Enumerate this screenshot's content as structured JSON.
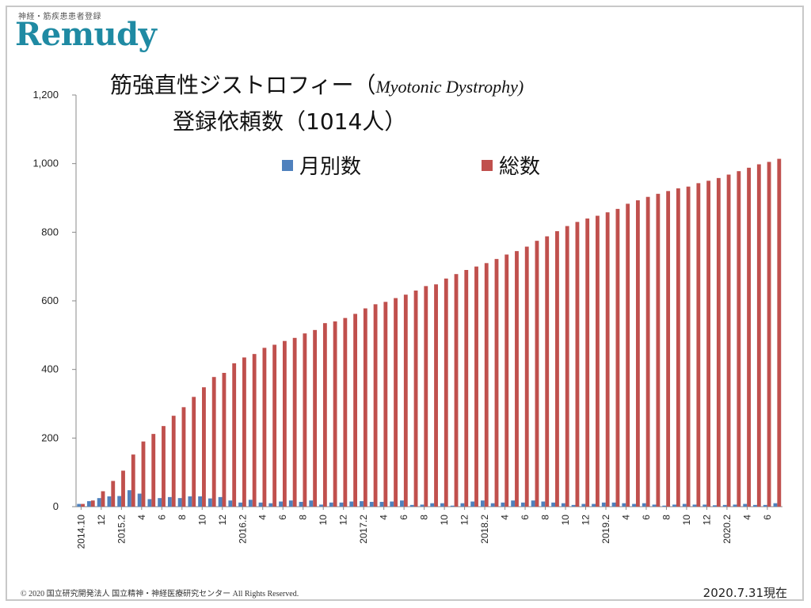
{
  "brand": {
    "sub": "神経・筋疾患患者登録",
    "logo": "Remudy"
  },
  "title": {
    "line1": "筋強直性ジストロフィー（",
    "line1_en": "Myotonic Dystrophy)",
    "line2": "登録依頼数（1014人）"
  },
  "legend": {
    "monthly": "月別数",
    "total": "総数"
  },
  "footer": {
    "copyright": "© 2020 国立研究開発法人 国立精神・神経医療研究センター All Rights Reserved.",
    "asof": "2020.7.31現在"
  },
  "colors": {
    "monthly": "#4f81bd",
    "total": "#c0504d",
    "brand": "#1f8aa3"
  },
  "chart_data": {
    "type": "bar",
    "ylim": [
      0,
      1200
    ],
    "yticks": [
      "0",
      "200",
      "400",
      "600",
      "800",
      "1,000",
      "1,200"
    ],
    "ytick_values": [
      0,
      200,
      400,
      600,
      800,
      1000,
      1200
    ],
    "grid": false,
    "legend_position": "top-right",
    "x_tick_labels": [
      "2014.10",
      "12",
      "2015.2",
      "4",
      "6",
      "8",
      "10",
      "12",
      "2016.2",
      "4",
      "6",
      "8",
      "10",
      "12",
      "2017.2",
      "4",
      "6",
      "8",
      "10",
      "12",
      "2018.2",
      "4",
      "6",
      "8",
      "10",
      "12",
      "2019.2",
      "4",
      "6",
      "8",
      "10",
      "12",
      "2020.2",
      "4",
      "6"
    ],
    "categories": [
      "2014.10",
      "2014.11",
      "2014.12",
      "2015.1",
      "2015.2",
      "2015.3",
      "2015.4",
      "2015.5",
      "2015.6",
      "2015.7",
      "2015.8",
      "2015.9",
      "2015.10",
      "2015.11",
      "2015.12",
      "2016.1",
      "2016.2",
      "2016.3",
      "2016.4",
      "2016.5",
      "2016.6",
      "2016.7",
      "2016.8",
      "2016.9",
      "2016.10",
      "2016.11",
      "2016.12",
      "2017.1",
      "2017.2",
      "2017.3",
      "2017.4",
      "2017.5",
      "2017.6",
      "2017.7",
      "2017.8",
      "2017.9",
      "2017.10",
      "2017.11",
      "2017.12",
      "2018.1",
      "2018.2",
      "2018.3",
      "2018.4",
      "2018.5",
      "2018.6",
      "2018.7",
      "2018.8",
      "2018.9",
      "2018.10",
      "2018.11",
      "2018.12",
      "2019.1",
      "2019.2",
      "2019.3",
      "2019.4",
      "2019.5",
      "2019.6",
      "2019.7",
      "2019.8",
      "2019.9",
      "2019.10",
      "2019.11",
      "2019.12",
      "2020.1",
      "2020.2",
      "2020.3",
      "2020.4",
      "2020.5",
      "2020.6",
      "2020.7"
    ],
    "series": [
      {
        "name": "月別数",
        "values": [
          8,
          16,
          25,
          30,
          31,
          48,
          38,
          22,
          25,
          28,
          25,
          30,
          30,
          24,
          28,
          18,
          12,
          20,
          12,
          10,
          15,
          18,
          14,
          18,
          6,
          12,
          12,
          15,
          16,
          14,
          14,
          15,
          18,
          5,
          6,
          10,
          10,
          3,
          10,
          15,
          18,
          10,
          12,
          18,
          12,
          18,
          15,
          12,
          10,
          5,
          8,
          8,
          12,
          12,
          10,
          8,
          10,
          6,
          3,
          6,
          8,
          6,
          6,
          4,
          5,
          6,
          8,
          5,
          5,
          10
        ]
      },
      {
        "name": "総数",
        "values": [
          8,
          18,
          45,
          75,
          105,
          152,
          190,
          212,
          235,
          265,
          290,
          320,
          348,
          378,
          390,
          418,
          435,
          445,
          463,
          472,
          483,
          492,
          505,
          515,
          535,
          540,
          550,
          562,
          578,
          590,
          597,
          608,
          618,
          630,
          643,
          648,
          665,
          678,
          690,
          700,
          710,
          722,
          735,
          745,
          758,
          775,
          788,
          803,
          818,
          830,
          840,
          848,
          858,
          868,
          883,
          893,
          903,
          912,
          920,
          928,
          933,
          943,
          950,
          958,
          968,
          978,
          988,
          998,
          1005,
          1014
        ]
      }
    ]
  }
}
